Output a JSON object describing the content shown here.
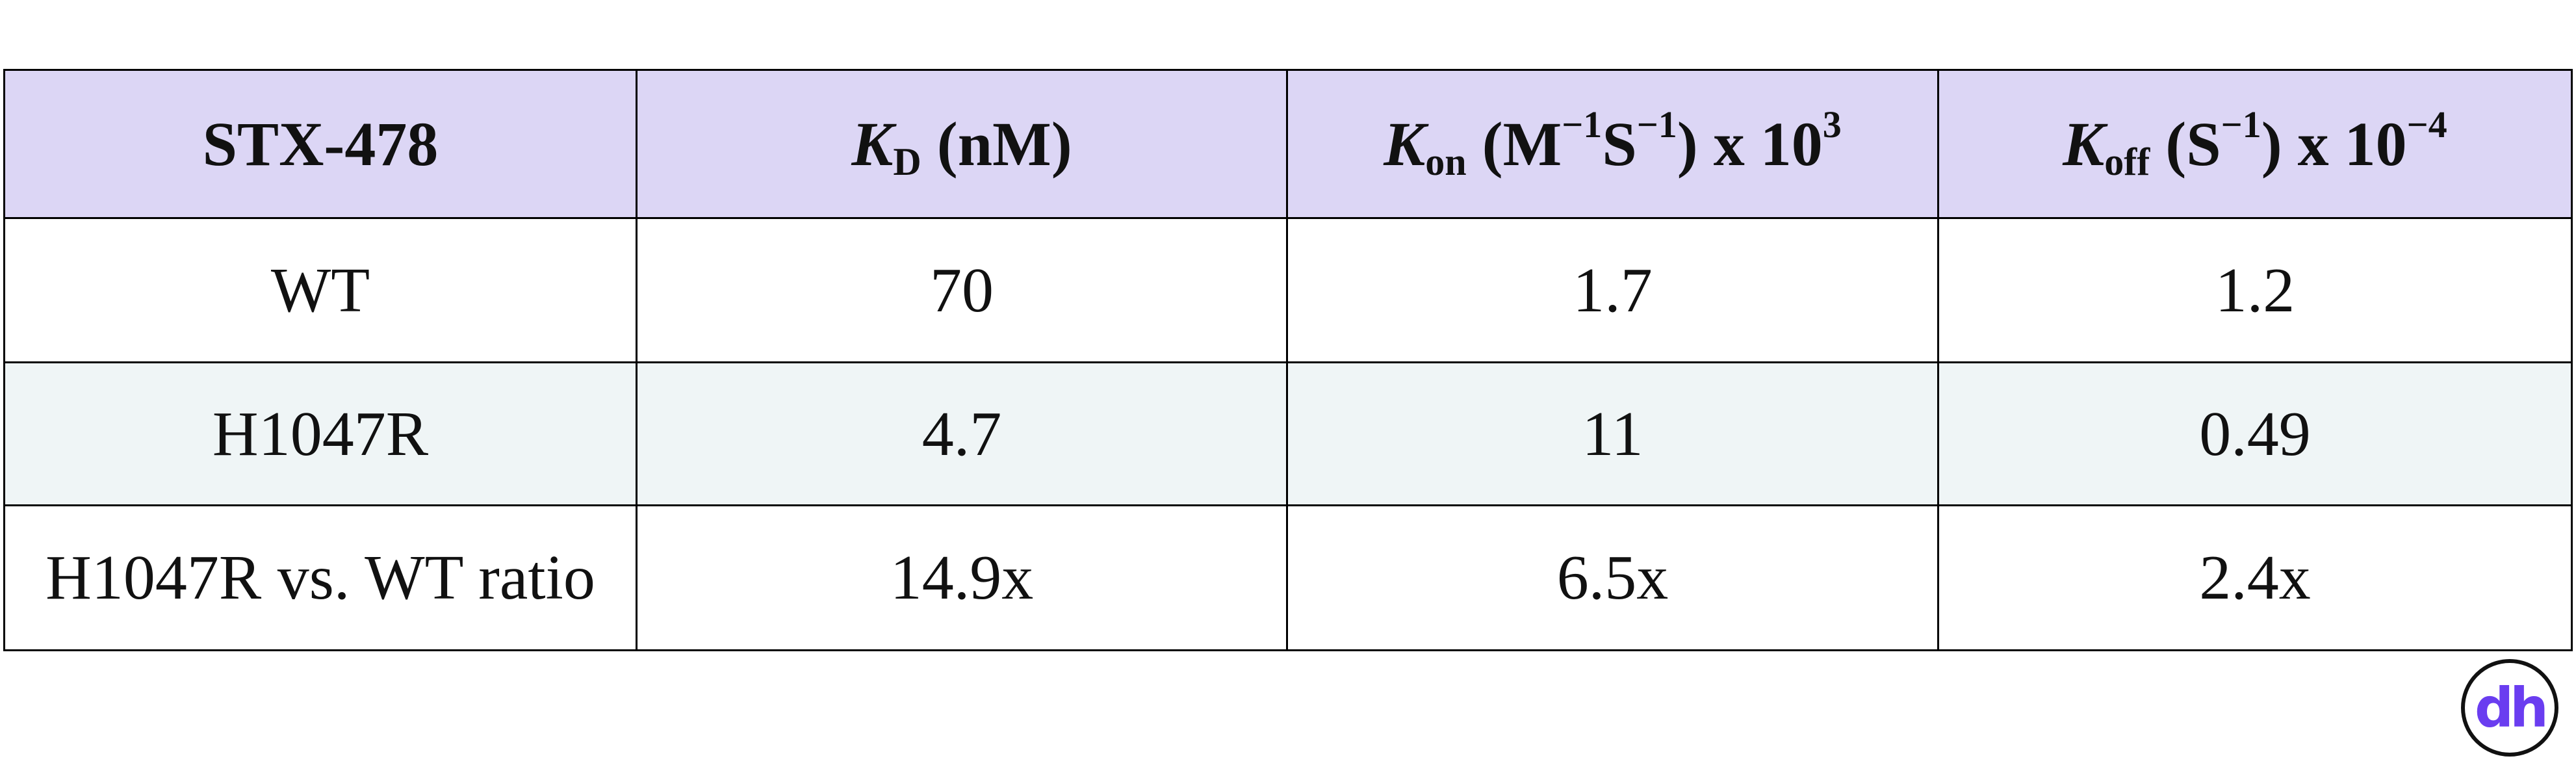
{
  "table": {
    "header": [
      [
        {
          "text": "STX-478",
          "style": "normal"
        }
      ],
      [
        {
          "text": "K",
          "style": "italic"
        },
        {
          "text": "D",
          "style": "sub"
        },
        {
          "text": " (nM)",
          "style": "normal"
        }
      ],
      [
        {
          "text": "K",
          "style": "italic"
        },
        {
          "text": "on",
          "style": "sub"
        },
        {
          "text": " (M",
          "style": "normal"
        },
        {
          "text": "−1",
          "style": "sup"
        },
        {
          "text": "S",
          "style": "normal"
        },
        {
          "text": "−1",
          "style": "sup"
        },
        {
          "text": ") x 10",
          "style": "normal"
        },
        {
          "text": "3",
          "style": "sup"
        }
      ],
      [
        {
          "text": "K",
          "style": "italic"
        },
        {
          "text": "off",
          "style": "sub"
        },
        {
          "text": " (S",
          "style": "normal"
        },
        {
          "text": "−1",
          "style": "sup"
        },
        {
          "text": ") x 10",
          "style": "normal"
        },
        {
          "text": "−4",
          "style": "sup"
        }
      ]
    ],
    "rows": [
      [
        "WT",
        "70",
        "1.7",
        "1.2"
      ],
      [
        "H1047R",
        "4.7",
        "11",
        "0.49"
      ],
      [
        "H1047R vs. WT ratio",
        "14.9x",
        "6.5x",
        "2.4x"
      ]
    ]
  },
  "logo": "dh"
}
